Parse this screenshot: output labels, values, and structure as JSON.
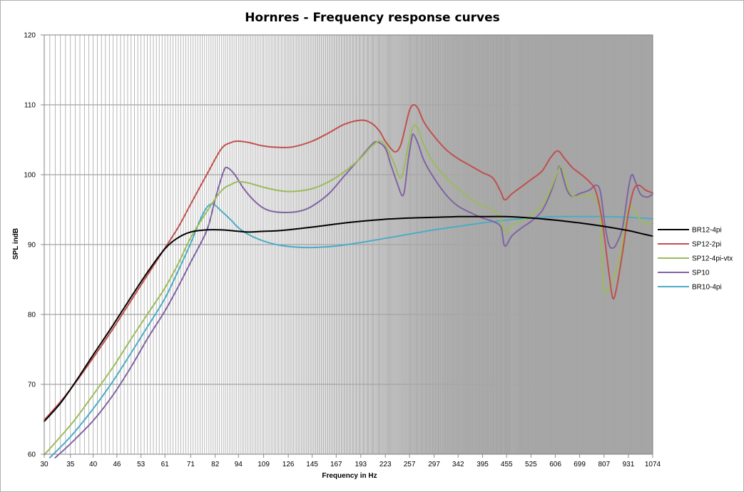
{
  "chart_data": {
    "type": "line",
    "title": "Hornres - Frequency response curves",
    "xlabel": "Frequency in Hz",
    "ylabel": "SPL indB",
    "xscale": "log",
    "xlim": [
      30,
      1074
    ],
    "ylim": [
      60,
      120
    ],
    "yticks": [
      60,
      70,
      80,
      90,
      100,
      110,
      120
    ],
    "xtick_labels": [
      "30",
      "35",
      "40",
      "46",
      "53",
      "61",
      "71",
      "82",
      "94",
      "109",
      "126",
      "145",
      "167",
      "193",
      "223",
      "257",
      "297",
      "342",
      "395",
      "455",
      "525",
      "606",
      "699",
      "807",
      "931",
      "1074"
    ],
    "grid": true,
    "legend_position": "right",
    "series": [
      {
        "name": "BR12-4pi",
        "color": "#000000",
        "points": [
          [
            30,
            64.7
          ],
          [
            33,
            67.3
          ],
          [
            36,
            70.3
          ],
          [
            40,
            74.2
          ],
          [
            45,
            78.5
          ],
          [
            50,
            82.5
          ],
          [
            55,
            86
          ],
          [
            61,
            89.4
          ],
          [
            66,
            91
          ],
          [
            71,
            91.8
          ],
          [
            78,
            92.1
          ],
          [
            85,
            92.1
          ],
          [
            94,
            91.9
          ],
          [
            100,
            91.8
          ],
          [
            109,
            91.9
          ],
          [
            120,
            92
          ],
          [
            135,
            92.3
          ],
          [
            150,
            92.6
          ],
          [
            170,
            93
          ],
          [
            190,
            93.3
          ],
          [
            220,
            93.6
          ],
          [
            257,
            93.8
          ],
          [
            297,
            93.9
          ],
          [
            342,
            94
          ],
          [
            395,
            94
          ],
          [
            455,
            94
          ],
          [
            525,
            93.8
          ],
          [
            606,
            93.5
          ],
          [
            699,
            93.1
          ],
          [
            807,
            92.6
          ],
          [
            931,
            92
          ],
          [
            1000,
            91.6
          ],
          [
            1074,
            91.2
          ]
        ]
      },
      {
        "name": "SP12-2pi",
        "color": "#c0504d",
        "points": [
          [
            30,
            64.9
          ],
          [
            33,
            67.5
          ],
          [
            36,
            70.2
          ],
          [
            40,
            73.8
          ],
          [
            45,
            78
          ],
          [
            50,
            82
          ],
          [
            55,
            85.6
          ],
          [
            61,
            89.5
          ],
          [
            66,
            92.5
          ],
          [
            71,
            95.8
          ],
          [
            78,
            100
          ],
          [
            85,
            103.7
          ],
          [
            90,
            104.6
          ],
          [
            94,
            104.8
          ],
          [
            100,
            104.6
          ],
          [
            109,
            104.1
          ],
          [
            120,
            103.9
          ],
          [
            130,
            104
          ],
          [
            145,
            104.8
          ],
          [
            160,
            106
          ],
          [
            175,
            107.2
          ],
          [
            193,
            107.8
          ],
          [
            205,
            107.4
          ],
          [
            215,
            106.3
          ],
          [
            223,
            104.8
          ],
          [
            235,
            103.3
          ],
          [
            243,
            104
          ],
          [
            250,
            106.5
          ],
          [
            257,
            109.2
          ],
          [
            263,
            110
          ],
          [
            270,
            109.5
          ],
          [
            280,
            107.5
          ],
          [
            297,
            105.5
          ],
          [
            320,
            103.5
          ],
          [
            342,
            102.3
          ],
          [
            370,
            101.2
          ],
          [
            395,
            100.3
          ],
          [
            420,
            99.5
          ],
          [
            440,
            97.5
          ],
          [
            450,
            96.4
          ],
          [
            470,
            97.3
          ],
          [
            500,
            98.4
          ],
          [
            525,
            99.3
          ],
          [
            560,
            100.5
          ],
          [
            590,
            102.5
          ],
          [
            615,
            103.4
          ],
          [
            640,
            102.3
          ],
          [
            670,
            101
          ],
          [
            699,
            100.2
          ],
          [
            740,
            99
          ],
          [
            770,
            97.5
          ],
          [
            800,
            93
          ],
          [
            830,
            86
          ],
          [
            850,
            82.3
          ],
          [
            870,
            84
          ],
          [
            900,
            89
          ],
          [
            931,
            94.5
          ],
          [
            960,
            97.8
          ],
          [
            990,
            98.5
          ],
          [
            1030,
            97.8
          ],
          [
            1074,
            97.4
          ]
        ]
      },
      {
        "name": "SP12-4pi-vtx",
        "color": "#9bbb59",
        "points": [
          [
            30,
            59.9
          ],
          [
            33,
            62.5
          ],
          [
            36,
            65
          ],
          [
            40,
            68.5
          ],
          [
            45,
            72.5
          ],
          [
            50,
            76.5
          ],
          [
            55,
            80
          ],
          [
            61,
            83.8
          ],
          [
            66,
            87.3
          ],
          [
            71,
            91
          ],
          [
            78,
            94.7
          ],
          [
            85,
            97.7
          ],
          [
            90,
            98.6
          ],
          [
            94,
            99
          ],
          [
            100,
            98.8
          ],
          [
            109,
            98.2
          ],
          [
            120,
            97.7
          ],
          [
            130,
            97.6
          ],
          [
            145,
            98
          ],
          [
            160,
            99
          ],
          [
            175,
            100.4
          ],
          [
            193,
            102.4
          ],
          [
            205,
            104
          ],
          [
            215,
            104.8
          ],
          [
            223,
            104.2
          ],
          [
            235,
            101.5
          ],
          [
            243,
            99.5
          ],
          [
            250,
            101.5
          ],
          [
            257,
            105
          ],
          [
            263,
            107
          ],
          [
            270,
            106.6
          ],
          [
            280,
            104.2
          ],
          [
            297,
            101.6
          ],
          [
            320,
            99.5
          ],
          [
            342,
            98
          ],
          [
            370,
            96.5
          ],
          [
            395,
            95.6
          ],
          [
            420,
            94.9
          ],
          [
            440,
            93.5
          ],
          [
            450,
            91.8
          ],
          [
            470,
            92.8
          ],
          [
            500,
            93.5
          ],
          [
            525,
            94.2
          ],
          [
            560,
            95.6
          ],
          [
            590,
            98
          ],
          [
            615,
            100.6
          ],
          [
            630,
            101
          ],
          [
            650,
            98.5
          ],
          [
            670,
            97
          ],
          [
            699,
            96.9
          ],
          [
            740,
            97
          ],
          [
            770,
            96.5
          ],
          [
            790,
            94
          ],
          [
            800,
            86
          ],
          [
            807,
            83.3
          ],
          [
            820,
            83.2
          ],
          [
            850,
            84.8
          ],
          [
            880,
            87.5
          ],
          [
            910,
            92
          ],
          [
            931,
            95.2
          ],
          [
            950,
            95.4
          ],
          [
            980,
            94.2
          ],
          [
            1020,
            93.1
          ],
          [
            1074,
            93
          ]
        ]
      },
      {
        "name": "SP10",
        "color": "#8064a2",
        "points": [
          [
            32,
            59.5
          ],
          [
            35,
            61.5
          ],
          [
            40,
            64.8
          ],
          [
            45,
            68.5
          ],
          [
            50,
            72.5
          ],
          [
            55,
            76.5
          ],
          [
            61,
            80.5
          ],
          [
            66,
            84
          ],
          [
            71,
            87.5
          ],
          [
            78,
            92
          ],
          [
            82,
            96.5
          ],
          [
            86,
            100.4
          ],
          [
            88,
            101
          ],
          [
            92,
            100
          ],
          [
            97,
            98
          ],
          [
            103,
            96.3
          ],
          [
            109,
            95.2
          ],
          [
            116,
            94.7
          ],
          [
            126,
            94.6
          ],
          [
            135,
            94.8
          ],
          [
            145,
            95.5
          ],
          [
            160,
            97.3
          ],
          [
            175,
            99.8
          ],
          [
            193,
            102.5
          ],
          [
            205,
            104.2
          ],
          [
            212,
            104.7
          ],
          [
            223,
            103.8
          ],
          [
            230,
            101.5
          ],
          [
            240,
            98.5
          ],
          [
            246,
            97
          ],
          [
            250,
            98
          ],
          [
            255,
            102
          ],
          [
            260,
            105
          ],
          [
            263,
            105.8
          ],
          [
            270,
            104.5
          ],
          [
            280,
            102
          ],
          [
            297,
            99.5
          ],
          [
            320,
            97
          ],
          [
            342,
            95.5
          ],
          [
            370,
            94.5
          ],
          [
            395,
            93.8
          ],
          [
            420,
            93.3
          ],
          [
            440,
            92.5
          ],
          [
            450,
            89.8
          ],
          [
            470,
            91.3
          ],
          [
            500,
            92.5
          ],
          [
            525,
            93.3
          ],
          [
            560,
            94.8
          ],
          [
            590,
            97.5
          ],
          [
            610,
            100
          ],
          [
            622,
            101.2
          ],
          [
            635,
            99.5
          ],
          [
            650,
            97.7
          ],
          [
            670,
            96.9
          ],
          [
            699,
            97.3
          ],
          [
            740,
            97.8
          ],
          [
            770,
            98.5
          ],
          [
            790,
            97.5
          ],
          [
            810,
            93
          ],
          [
            830,
            90
          ],
          [
            850,
            89.5
          ],
          [
            870,
            90.2
          ],
          [
            900,
            92.5
          ],
          [
            931,
            98
          ],
          [
            950,
            100
          ],
          [
            970,
            99
          ],
          [
            1000,
            97.2
          ],
          [
            1040,
            96.8
          ],
          [
            1074,
            97.2
          ]
        ]
      },
      {
        "name": "BR10-4pi",
        "color": "#4bacc6",
        "points": [
          [
            31,
            59.5
          ],
          [
            35,
            62.5
          ],
          [
            40,
            66.5
          ],
          [
            45,
            70.5
          ],
          [
            50,
            74.5
          ],
          [
            55,
            78.2
          ],
          [
            61,
            82.3
          ],
          [
            66,
            86.3
          ],
          [
            71,
            90.2
          ],
          [
            75,
            93.5
          ],
          [
            78,
            95.3
          ],
          [
            81,
            95.8
          ],
          [
            85,
            94.8
          ],
          [
            90,
            93.5
          ],
          [
            94,
            92.4
          ],
          [
            100,
            91.4
          ],
          [
            109,
            90.5
          ],
          [
            120,
            89.9
          ],
          [
            135,
            89.6
          ],
          [
            150,
            89.6
          ],
          [
            167,
            89.8
          ],
          [
            193,
            90.3
          ],
          [
            223,
            90.9
          ],
          [
            257,
            91.5
          ],
          [
            297,
            92.1
          ],
          [
            342,
            92.6
          ],
          [
            395,
            93.1
          ],
          [
            455,
            93.5
          ],
          [
            525,
            93.8
          ],
          [
            606,
            94
          ],
          [
            699,
            94
          ],
          [
            807,
            94
          ],
          [
            931,
            93.9
          ],
          [
            1074,
            93.7
          ]
        ]
      }
    ]
  }
}
